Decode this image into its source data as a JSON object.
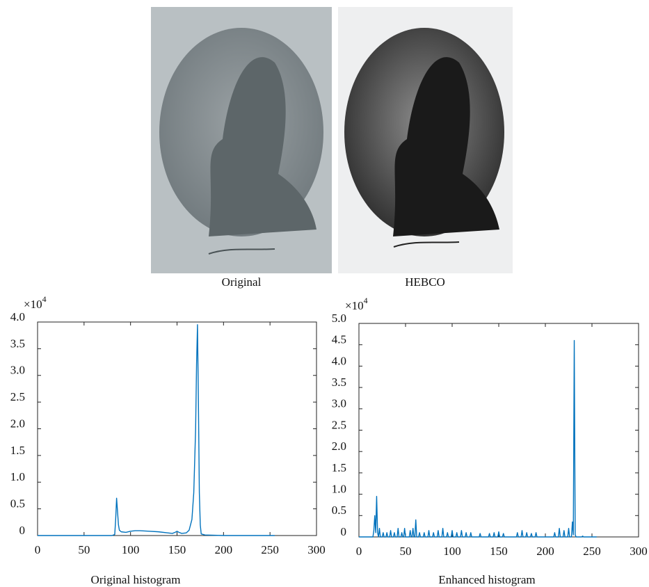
{
  "images": [
    {
      "caption": "Original"
    },
    {
      "caption": "HEBCO"
    }
  ],
  "chart_data": [
    {
      "type": "line",
      "title": "Original histogram",
      "color": "#0072bd",
      "y_scale": {
        "base": "×10",
        "exponent": "4"
      },
      "xlim": [
        0,
        300
      ],
      "xticks": [
        0,
        50,
        100,
        150,
        200,
        250,
        300
      ],
      "ylim": [
        0,
        4
      ],
      "yticks": [
        0,
        0.5,
        {
          "value": 1,
          "label": "1.0"
        },
        1.5,
        {
          "value": 2,
          "label": "2.0"
        },
        2.5,
        {
          "value": 3,
          "label": "3.0"
        },
        3.5,
        {
          "value": 4,
          "label": "4.0"
        }
      ],
      "x": [
        0,
        80,
        83,
        84,
        85,
        86,
        87,
        88,
        90,
        95,
        100,
        105,
        110,
        120,
        130,
        140,
        145,
        148,
        150,
        152,
        155,
        160,
        163,
        166,
        168,
        170,
        171,
        172,
        173,
        174,
        175,
        176,
        180,
        200,
        255
      ],
      "values": [
        0,
        0,
        0.02,
        0.3,
        0.7,
        0.45,
        0.2,
        0.1,
        0.07,
        0.06,
        0.08,
        0.09,
        0.09,
        0.08,
        0.07,
        0.05,
        0.04,
        0.06,
        0.08,
        0.06,
        0.04,
        0.05,
        0.1,
        0.3,
        0.8,
        2.0,
        3.2,
        3.95,
        2.5,
        0.8,
        0.2,
        0.03,
        0.01,
        0,
        0
      ]
    },
    {
      "type": "line",
      "title": "Enhanced histogram",
      "color": "#0072bd",
      "y_scale": {
        "base": "×10",
        "exponent": "4"
      },
      "xlim": [
        0,
        300
      ],
      "xticks": [
        0,
        50,
        100,
        150,
        200,
        250,
        300
      ],
      "ylim": [
        0,
        5
      ],
      "yticks": [
        0,
        0.5,
        {
          "value": 1,
          "label": "1.0"
        },
        1.5,
        {
          "value": 2,
          "label": "2.0"
        },
        2.5,
        {
          "value": 3,
          "label": "3.0"
        },
        3.5,
        {
          "value": 4,
          "label": "4.0"
        },
        4.5,
        {
          "value": 5,
          "label": "5.0"
        }
      ],
      "x": [
        0,
        15,
        16,
        17,
        18,
        19,
        20,
        21,
        22,
        23,
        25,
        26,
        27,
        29,
        30,
        31,
        33,
        34,
        35,
        37,
        38,
        39,
        41,
        42,
        43,
        45,
        46,
        47,
        48,
        49,
        50,
        54,
        55,
        56,
        57,
        58,
        59,
        60,
        61,
        62,
        64,
        65,
        66,
        69,
        70,
        71,
        74,
        75,
        76,
        79,
        80,
        81,
        84,
        85,
        86,
        89,
        90,
        91,
        94,
        95,
        96,
        99,
        100,
        101,
        104,
        105,
        106,
        109,
        110,
        111,
        114,
        115,
        116,
        119,
        120,
        121,
        129,
        130,
        131,
        139,
        140,
        141,
        144,
        145,
        146,
        149,
        150,
        151,
        154,
        155,
        156,
        169,
        170,
        171,
        174,
        175,
        176,
        179,
        180,
        181,
        184,
        185,
        186,
        189,
        190,
        191,
        209,
        210,
        211,
        214,
        215,
        216,
        219,
        220,
        221,
        224,
        225,
        226,
        228,
        229,
        230,
        231,
        232,
        233,
        239,
        240,
        241,
        255
      ],
      "values": [
        0,
        0,
        0.15,
        0.5,
        0.1,
        0.95,
        0.1,
        0,
        0.2,
        0,
        0,
        0.1,
        0,
        0,
        0.1,
        0,
        0,
        0.15,
        0,
        0,
        0.1,
        0,
        0,
        0.2,
        0,
        0,
        0.1,
        0,
        0,
        0.2,
        0,
        0,
        0.15,
        0,
        0,
        0.2,
        0,
        0,
        0.4,
        0,
        0,
        0.1,
        0,
        0,
        0.1,
        0,
        0,
        0.15,
        0,
        0,
        0.1,
        0,
        0,
        0.15,
        0,
        0,
        0.2,
        0,
        0,
        0.1,
        0,
        0,
        0.15,
        0,
        0,
        0.1,
        0,
        0,
        0.15,
        0,
        0,
        0.1,
        0,
        0,
        0.1,
        0,
        0,
        0.08,
        0,
        0,
        0.08,
        0,
        0,
        0.1,
        0,
        0,
        0.12,
        0,
        0,
        0.08,
        0,
        0,
        0.1,
        0,
        0,
        0.15,
        0,
        0,
        0.1,
        0,
        0,
        0.08,
        0,
        0,
        0.1,
        0,
        0,
        0.1,
        0,
        0,
        0.2,
        0,
        0,
        0.15,
        0,
        0,
        0.2,
        0,
        0,
        0.35,
        0.05,
        4.6,
        0.05,
        0,
        0,
        0.02,
        0,
        0
      ]
    }
  ]
}
